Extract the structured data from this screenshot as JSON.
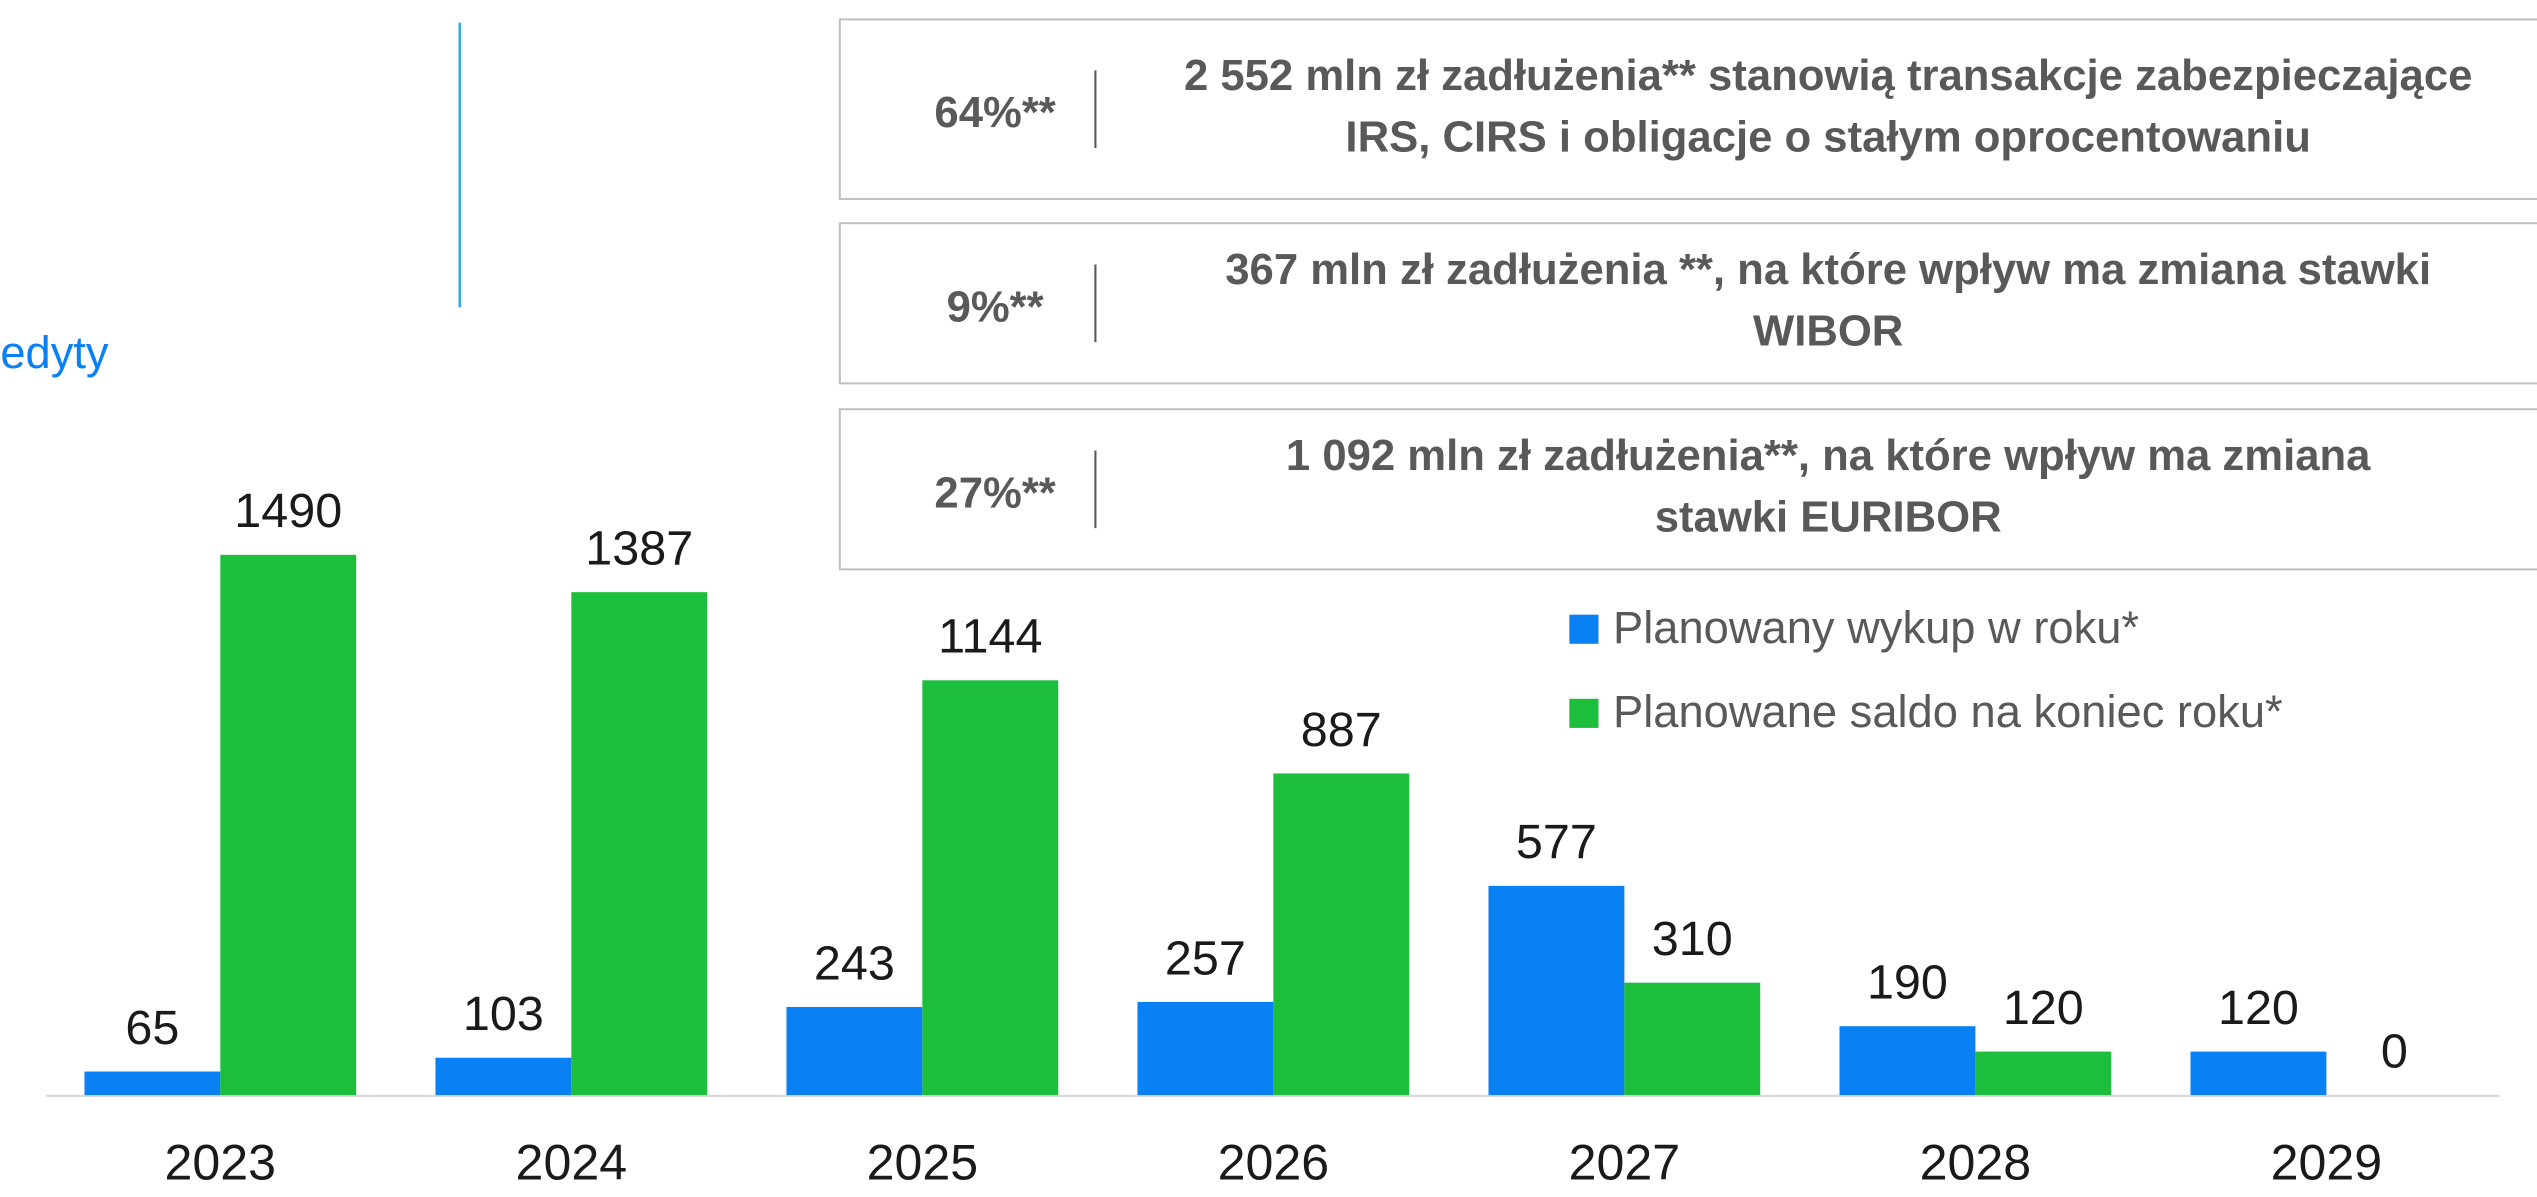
{
  "fragment_text": "edyty",
  "boxes": [
    {
      "percent": "64%**",
      "lines": [
        "2 552 mln zł zadłużenia** stanowią transakcje zabezpieczające",
        "IRS, CIRS i obligacje o stałym oprocentowaniu"
      ]
    },
    {
      "percent": "9%**",
      "lines": [
        "367 mln zł zadłużenia **, na które wpływ ma zmiana stawki",
        "WIBOR"
      ]
    },
    {
      "percent": "27%**",
      "lines": [
        "1 092 mln zł zadłużenia**, na które wpływ ma zmiana",
        "stawki EURIBOR"
      ]
    }
  ],
  "chart_data": {
    "type": "bar",
    "categories": [
      "2023",
      "2024",
      "2025",
      "2026",
      "2027",
      "2028",
      "2029"
    ],
    "series": [
      {
        "name": "Planowany wykup w roku*",
        "color": "#0a80f5",
        "values": [
          65,
          103,
          243,
          257,
          577,
          190,
          120
        ]
      },
      {
        "name": "Planowane saldo na koniec roku*",
        "color": "#1dbe3b",
        "values": [
          1490,
          1387,
          1144,
          887,
          310,
          120,
          0
        ]
      }
    ]
  }
}
